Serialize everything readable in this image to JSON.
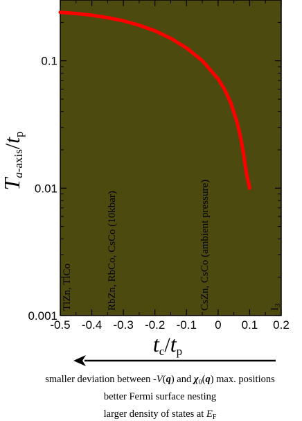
{
  "chart_data": {
    "type": "line",
    "xlabel": {
      "main": "t",
      "sub_c": "c",
      "sep": "/",
      "main2": "t",
      "sub_p": "p"
    },
    "ylabel": {
      "main": "T",
      "sub_a": "a",
      "sub_rest": "-axis",
      "sep": "/",
      "main2": "t",
      "sub_p": "p"
    },
    "xlim": [
      -0.5,
      0.2
    ],
    "ylim": [
      0.001,
      0.3
    ],
    "yscale": "log",
    "x_ticks": [
      -0.5,
      -0.4,
      -0.3,
      -0.2,
      -0.1,
      0,
      0.1,
      0.2
    ],
    "x_tick_labels": [
      "-0.5",
      "-0.4",
      "-0.3",
      "-0.2",
      "-0.1",
      "0",
      "0.1",
      "0.2"
    ],
    "y_ticks": [
      0.001,
      0.01,
      0.1
    ],
    "y_tick_labels": [
      "0.001",
      "0.01",
      "0.1"
    ],
    "series": [
      {
        "x": [
          -0.5,
          -0.45,
          -0.4,
          -0.35,
          -0.3,
          -0.25,
          -0.2,
          -0.15,
          -0.1,
          -0.05,
          0.0,
          0.02,
          0.04,
          0.06,
          0.07,
          0.08,
          0.09,
          0.1
        ],
        "y": [
          0.24,
          0.235,
          0.228,
          0.218,
          0.206,
          0.19,
          0.172,
          0.15,
          0.126,
          0.1,
          0.072,
          0.06,
          0.047,
          0.033,
          0.026,
          0.019,
          0.013,
          0.01
        ]
      }
    ],
    "annotations": [
      {
        "text": "TlZn, TlCo",
        "x": -0.5
      },
      {
        "text": "RbZn, RbCo, CsCo (10kbar)",
        "x": -0.36
      },
      {
        "text": "CsZn, CsCo (ambient pressure)",
        "x": -0.1
      },
      {
        "text": "I",
        "sub": "3",
        "x": 0.2
      }
    ],
    "colors": {
      "background": "#4d4a0f",
      "line": "#ff0000",
      "arrow": "#000000"
    }
  },
  "caption": {
    "line1": {
      "a": "smaller deviation between -",
      "b": "V",
      "c": "(",
      "d": "q",
      "e": ") and ",
      "f": "χ",
      "g": "0",
      "h": "(",
      "i": "q",
      "j": ") max. positions"
    },
    "line2": "better Fermi surface nesting",
    "line3": {
      "a": "larger density of states at ",
      "b": "E",
      "c": "F"
    }
  }
}
